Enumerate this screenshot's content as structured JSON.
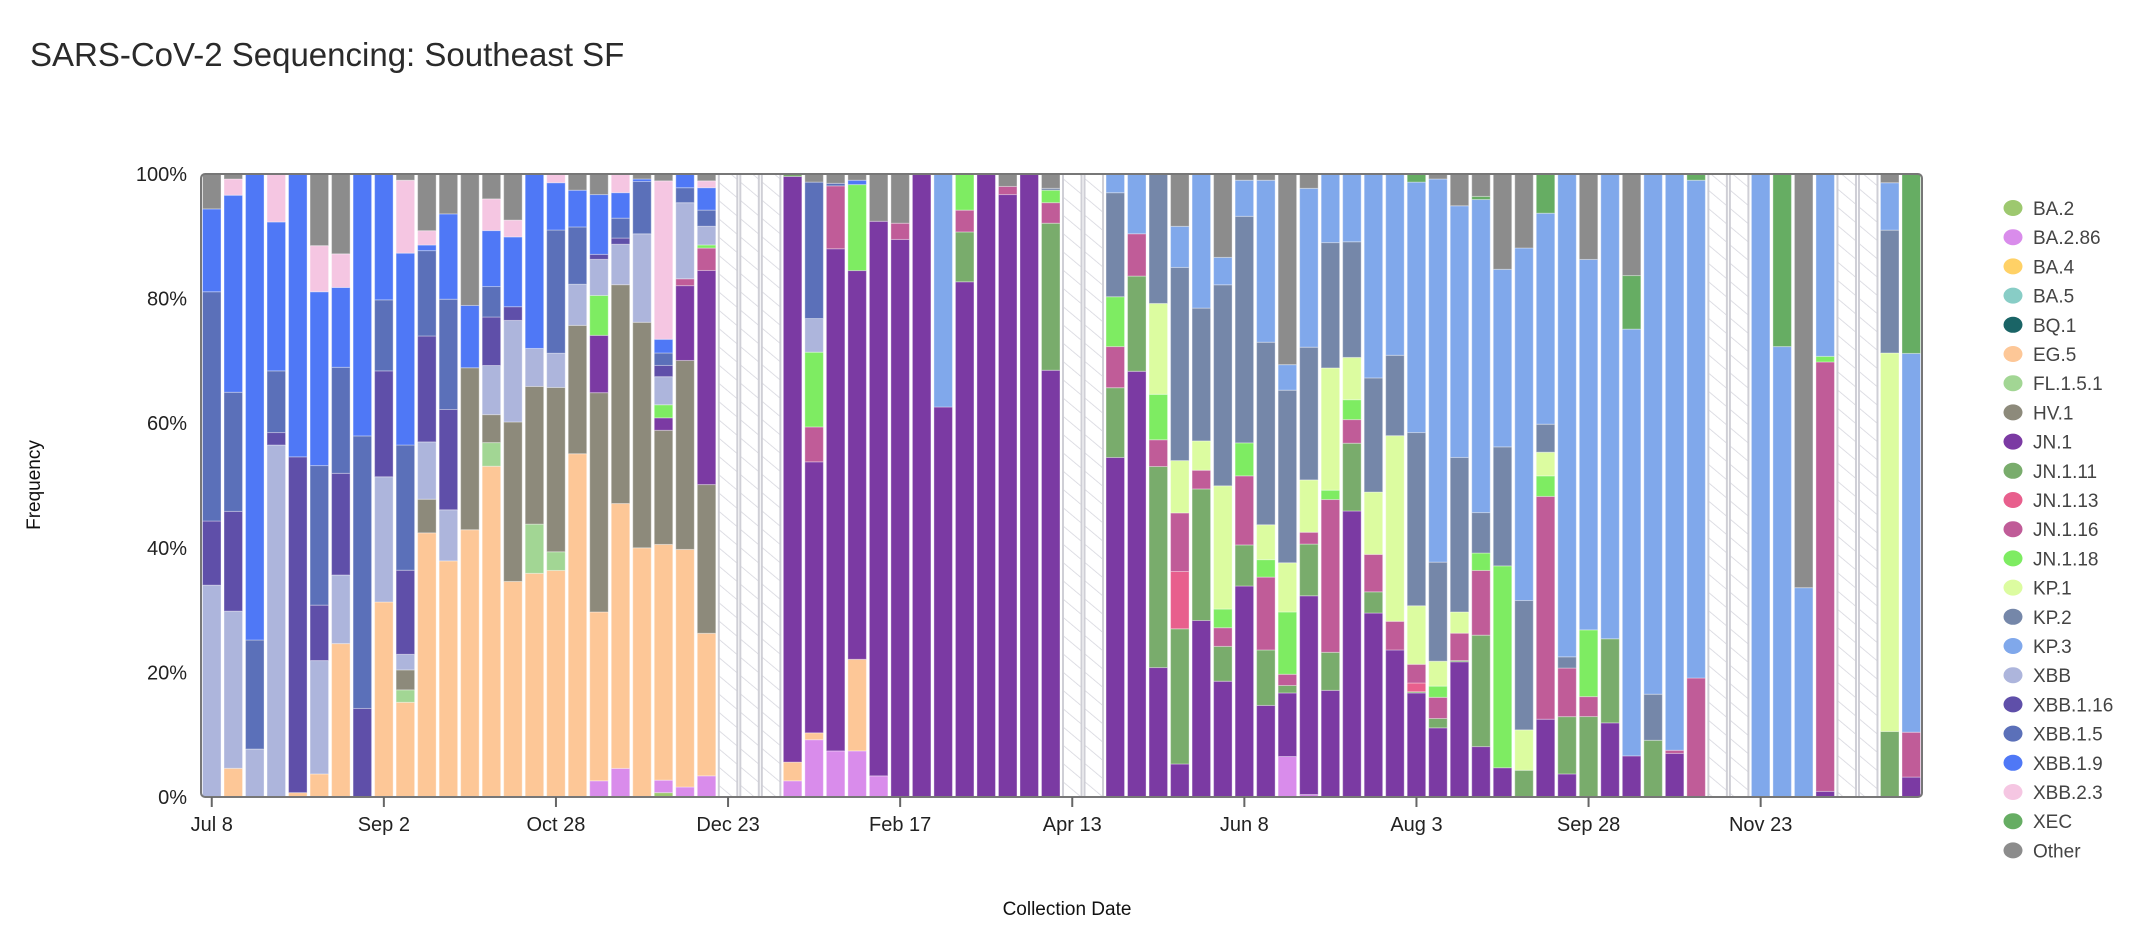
{
  "title": "SARS-CoV-2 Sequencing: Southeast SF",
  "chart_data": {
    "type": "bar",
    "stacked": true,
    "normalized": true,
    "title": "SARS-CoV-2 Sequencing: Southeast SF",
    "xlabel": "Collection Date",
    "ylabel": "Frequency",
    "ylim": [
      0,
      100
    ],
    "y_ticks": [
      "0%",
      "20%",
      "40%",
      "60%",
      "80%",
      "100%"
    ],
    "x_ticks": [
      {
        "label": "Jul 8",
        "date": "2023-07-08"
      },
      {
        "label": "Sep 2",
        "date": "2023-09-02"
      },
      {
        "label": "Oct 28",
        "date": "2023-10-28"
      },
      {
        "label": "Dec 23",
        "date": "2023-12-23"
      },
      {
        "label": "Feb 17",
        "date": "2024-02-17"
      },
      {
        "label": "Apr 13",
        "date": "2024-04-13"
      },
      {
        "label": "Jun 8",
        "date": "2024-06-08"
      },
      {
        "label": "Aug 3",
        "date": "2024-08-03"
      },
      {
        "label": "Sep 28",
        "date": "2024-09-28"
      },
      {
        "label": "Nov 23",
        "date": "2024-11-23"
      }
    ],
    "legend_position": "right",
    "missing_weeks_style": "hatched",
    "variants": [
      {
        "name": "BA.2",
        "color": "#9dc86f"
      },
      {
        "name": "BA.2.86",
        "color": "#d98ceb"
      },
      {
        "name": "BA.4",
        "color": "#ffd166"
      },
      {
        "name": "BA.5",
        "color": "#88cdc6"
      },
      {
        "name": "BQ.1",
        "color": "#1a6466"
      },
      {
        "name": "EG.5",
        "color": "#fdc797"
      },
      {
        "name": "FL.1.5.1",
        "color": "#a2d694"
      },
      {
        "name": "HV.1",
        "color": "#8d8a7b"
      },
      {
        "name": "JN.1",
        "color": "#7b3aa3"
      },
      {
        "name": "JN.1.11",
        "color": "#79ac6c"
      },
      {
        "name": "JN.1.13",
        "color": "#e85f8d"
      },
      {
        "name": "JN.1.16",
        "color": "#c05c98"
      },
      {
        "name": "JN.1.18",
        "color": "#7eec62"
      },
      {
        "name": "KP.1",
        "color": "#dcfca0"
      },
      {
        "name": "KP.2",
        "color": "#7587a9"
      },
      {
        "name": "KP.3",
        "color": "#80a8eb"
      },
      {
        "name": "XBB",
        "color": "#adb5dc"
      },
      {
        "name": "XBB.1.16",
        "color": "#5f4fa9"
      },
      {
        "name": "XBB.1.5",
        "color": "#5b70b9"
      },
      {
        "name": "XBB.1.9",
        "color": "#4f78f6"
      },
      {
        "name": "XBB.2.3",
        "color": "#f5c6e2"
      },
      {
        "name": "XEC",
        "color": "#66ad63"
      },
      {
        "name": "Other",
        "color": "#8c8c8c"
      }
    ],
    "weeks": [
      {
        "date": "2023-07-08",
        "values": {
          "XBB": 34,
          "XBB.1.16": 10.3,
          "XBB.1.5": 36.8,
          "XBB.1.9": 13.3,
          "Other": 5.6
        }
      },
      {
        "date": "2023-07-15",
        "values": {
          "EG.5": 4.6,
          "XBB": 25.2,
          "XBB.1.16": 16,
          "XBB.1.5": 19.1,
          "XBB.1.9": 31.6,
          "XBB.2.3": 2.6,
          "Other": 0.8
        }
      },
      {
        "date": "2023-07-22",
        "values": {
          "XBB": 7.7,
          "XBB.1.5": 17.5,
          "XBB.1.9": 74.8
        }
      },
      {
        "date": "2023-07-29",
        "values": {
          "XBB": 56.5,
          "XBB.1.16": 2,
          "XBB.1.5": 9.9,
          "XBB.1.9": 23.9,
          "XBB.2.3": 7.7
        }
      },
      {
        "date": "2023-08-05",
        "values": {
          "EG.5": 0.7,
          "XBB.1.16": 53.9,
          "XBB.1.9": 45.4
        }
      },
      {
        "date": "2023-08-12",
        "values": {
          "EG.5": 3.7,
          "XBB": 18.2,
          "XBB.1.16": 8.9,
          "XBB.1.5": 22.4,
          "XBB.1.9": 27.9,
          "XBB.2.3": 7.4,
          "Other": 11.5
        }
      },
      {
        "date": "2023-08-19",
        "values": {
          "EG.5": 24.6,
          "XBB": 11,
          "XBB.1.16": 16.3,
          "XBB.1.5": 17,
          "XBB.1.9": 12.8,
          "XBB.2.3": 5.4,
          "Other": 12.8
        }
      },
      {
        "date": "2023-08-26",
        "values": {
          "XBB.1.16": 14.2,
          "XBB.1.5": 43.7,
          "XBB.1.9": 42
        }
      },
      {
        "date": "2023-09-02",
        "values": {
          "EG.5": 31.3,
          "XBB": 20.1,
          "XBB.1.16": 17,
          "XBB.1.5": 11.4,
          "XBB.1.9": 20.2
        }
      },
      {
        "date": "2023-09-09",
        "values": {
          "EG.5": 15.2,
          "FL.1.5.1": 2,
          "HV.1": 3.2,
          "XBB": 2.5,
          "XBB.1.16": 13.5,
          "XBB.1.5": 20.1,
          "XBB.1.9": 30.8,
          "XBB.2.3": 11.7,
          "Other": 1
        }
      },
      {
        "date": "2023-09-16",
        "values": {
          "EG.5": 42.4,
          "HV.1": 5.4,
          "XBB": 9.2,
          "XBB.1.16": 17,
          "XBB.1.5": 13.7,
          "XBB.1.9": 0.9,
          "XBB.2.3": 2.3,
          "Other": 9.1
        }
      },
      {
        "date": "2023-09-23",
        "values": {
          "EG.5": 37.9,
          "XBB": 8.2,
          "XBB.1.16": 16.1,
          "XBB.1.5": 17.7,
          "XBB.1.9": 13.7,
          "Other": 6.4
        }
      },
      {
        "date": "2023-09-30",
        "values": {
          "EG.5": 42.9,
          "HV.1": 26,
          "XBB.1.9": 10,
          "Other": 21.1
        }
      },
      {
        "date": "2023-10-07",
        "values": {
          "EG.5": 53.2,
          "FL.1.5.1": 3.8,
          "HV.1": 4.5,
          "XBB": 7.9,
          "XBB.1.16": 7.8,
          "XBB.1.5": 4.9,
          "XBB.1.9": 9,
          "XBB.2.3": 5.1,
          "Other": 4
        }
      },
      {
        "date": "2023-10-14",
        "values": {
          "EG.5": 34.6,
          "HV.1": 25.6,
          "XBB": 16.3,
          "XBB.1.16": 2.2,
          "XBB.1.9": 11.2,
          "XBB.2.3": 2.7,
          "Other": 7.4
        }
      },
      {
        "date": "2023-10-21",
        "values": {
          "EG.5": 35.9,
          "FL.1.5.1": 7.9,
          "HV.1": 22.1,
          "XBB": 6.1,
          "XBB.1.9": 28
        }
      },
      {
        "date": "2023-10-28",
        "values": {
          "EG.5": 36.4,
          "FL.1.5.1": 3,
          "HV.1": 26.4,
          "XBB": 5.5,
          "XBB.1.5": 19.8,
          "XBB.1.9": 7.6,
          "XBB.2.3": 1.4
        }
      },
      {
        "date": "2023-11-04",
        "values": {
          "EG.5": 55.1,
          "HV.1": 20.6,
          "XBB": 6.6,
          "XBB.1.5": 9.2,
          "XBB.1.9": 5.9,
          "Other": 2.6
        }
      },
      {
        "date": "2023-11-11",
        "values": {
          "BA.2.86": 2.6,
          "EG.5": 27.1,
          "HV.1": 35.2,
          "JN.1": 9.2,
          "JN.1.18": 6.4,
          "XBB": 5.8,
          "XBB.1.16": 0.8,
          "XBB.1.9": 9.6,
          "Other": 3.3
        }
      },
      {
        "date": "2023-11-18",
        "values": {
          "BA.2.86": 4.6,
          "EG.5": 42.6,
          "HV.1": 35.2,
          "XBB": 6.5,
          "XBB.1.16": 1,
          "XBB.1.5": 3.2,
          "XBB.1.9": 4.1,
          "XBB.2.3": 3
        }
      },
      {
        "date": "2023-11-25",
        "values": {
          "EG.5": 40,
          "HV.1": 36.2,
          "XBB": 14.2,
          "XBB.1.5": 8.4,
          "XBB.1.9": 0.4,
          "Other": 0.8
        }
      },
      {
        "date": "2023-12-02",
        "values": {
          "BA.2": 0.7,
          "BA.2.86": 2,
          "EG.5": 37.8,
          "HV.1": 18.3,
          "JN.1": 2,
          "JN.1.18": 2.1,
          "XBB": 4.5,
          "XBB.1.16": 1.8,
          "XBB.1.5": 2,
          "XBB.1.9": 2.2,
          "XBB.2.3": 25.4,
          "Other": 1.1
        }
      },
      {
        "date": "2023-12-09",
        "values": {
          "BA.2.86": 1.6,
          "EG.5": 38.1,
          "HV.1": 30.3,
          "JN.1": 12,
          "JN.1.16": 1.1,
          "XBB": 12.2,
          "XBB.1.5": 2.4,
          "XBB.1.9": 2.2
        }
      },
      {
        "date": "2023-12-16",
        "values": {
          "BA.2.86": 3.4,
          "EG.5": 22.9,
          "HV.1": 23.9,
          "JN.1": 34.4,
          "JN.1.16": 3.6,
          "JN.1.18": 0.5,
          "XBB": 3,
          "XBB.1.5": 2.6,
          "XBB.1.9": 3.6,
          "XBB.2.3": 1.1,
          "Other": 1.1
        }
      },
      {
        "date": "2023-12-23",
        "values": null
      },
      {
        "date": "2023-12-30",
        "values": null
      },
      {
        "date": "2024-01-06",
        "values": null
      },
      {
        "date": "2024-01-13",
        "values": {
          "BA.2.86": 2.6,
          "EG.5": 3,
          "JN.1": 94,
          "JN.1.11": 0.4
        }
      },
      {
        "date": "2024-01-20",
        "values": {
          "BA.2.86": 9.2,
          "EG.5": 1.1,
          "JN.1": 43.5,
          "JN.1.16": 5.6,
          "JN.1.18": 12,
          "XBB": 5.4,
          "XBB.1.5": 21.9,
          "Other": 1.3
        }
      },
      {
        "date": "2024-01-27",
        "values": {
          "BA.2.86": 7.4,
          "JN.1": 80.6,
          "JN.1.16": 10.1,
          "XBB.1.5": 0.4,
          "Other": 1.5
        }
      },
      {
        "date": "2024-02-03",
        "values": {
          "BA.2.86": 7.4,
          "EG.5": 14.7,
          "JN.1": 62.4,
          "JN.1.18": 13.8,
          "XBB.1.9": 0.7,
          "Other": 1
        }
      },
      {
        "date": "2024-02-10",
        "values": {
          "BA.2.86": 3.4,
          "JN.1": 89.1,
          "Other": 7.6
        }
      },
      {
        "date": "2024-02-17",
        "values": {
          "JN.1": 89.5,
          "JN.1.16": 2.6,
          "Other": 7.9
        }
      },
      {
        "date": "2024-02-24",
        "values": {
          "JN.1": 100
        }
      },
      {
        "date": "2024-03-02",
        "values": {
          "JN.1": 62.6,
          "KP.3": 37.4
        }
      },
      {
        "date": "2024-03-09",
        "values": {
          "JN.1": 82.7,
          "JN.1.11": 8,
          "JN.1.16": 3.5,
          "JN.1.18": 5.8
        }
      },
      {
        "date": "2024-03-16",
        "values": {
          "JN.1": 100
        }
      },
      {
        "date": "2024-03-23",
        "values": {
          "JN.1": 96.7,
          "JN.1.16": 1.3,
          "Other": 2
        }
      },
      {
        "date": "2024-03-30",
        "values": {
          "JN.1": 100
        }
      },
      {
        "date": "2024-04-06",
        "values": {
          "JN.1": 68.5,
          "JN.1.11": 23.6,
          "JN.1.16": 3.3,
          "JN.1.18": 2,
          "KP.2": 0.3,
          "Other": 2.3
        }
      },
      {
        "date": "2024-04-13",
        "values": null
      },
      {
        "date": "2024-04-20",
        "values": null
      },
      {
        "date": "2024-04-27",
        "values": {
          "JN.1": 54.5,
          "JN.1.11": 11.2,
          "JN.1.16": 6.6,
          "JN.1.18": 8,
          "KP.2": 16.7,
          "KP.3": 3
        }
      },
      {
        "date": "2024-05-04",
        "values": {
          "JN.1": 68.4,
          "JN.1.11": 15.3,
          "JN.1.16": 6.8,
          "KP.3": 9.6
        }
      },
      {
        "date": "2024-05-11",
        "values": {
          "JN.1": 20.8,
          "JN.1.11": 32.3,
          "JN.1.16": 4.3,
          "JN.1.18": 7.3,
          "KP.1": 14.6,
          "KP.2": 20.8
        }
      },
      {
        "date": "2024-05-18",
        "values": {
          "JN.1": 5.3,
          "JN.1.11": 21.7,
          "JN.1.13": 9.2,
          "JN.1.16": 9.4,
          "KP.1": 8.4,
          "KP.2": 31,
          "KP.3": 6.6,
          "Other": 8.4
        }
      },
      {
        "date": "2024-05-25",
        "values": {
          "JN.1": 28.3,
          "JN.1.11": 21.1,
          "JN.1.16": 3,
          "KP.1": 4.7,
          "KP.2": 21.3,
          "KP.3": 21.5
        }
      },
      {
        "date": "2024-06-01",
        "values": {
          "JN.1": 18.6,
          "JN.1.11": 5.6,
          "JN.1.16": 3,
          "JN.1.18": 3,
          "KP.1": 19.8,
          "KP.2": 32.3,
          "KP.3": 4.4,
          "Other": 13.4
        }
      },
      {
        "date": "2024-06-08",
        "values": {
          "JN.1": 33.9,
          "JN.1.11": 6.6,
          "JN.1.16": 11.1,
          "JN.1.18": 5.3,
          "KP.2": 36.4,
          "KP.3": 5.8,
          "Other": 1
        }
      },
      {
        "date": "2024-06-15",
        "values": {
          "JN.1": 14.7,
          "JN.1.11": 8.9,
          "JN.1.16": 11.7,
          "JN.1.18": 2.8,
          "KP.1": 5.6,
          "KP.2": 29.3,
          "KP.3": 26,
          "Other": 1
        }
      },
      {
        "date": "2024-06-22",
        "values": {
          "BA.2.86": 6.5,
          "JN.1": 10.2,
          "JN.1.11": 1.2,
          "JN.1.16": 1.8,
          "JN.1.18": 10,
          "KP.1": 7.9,
          "KP.2": 27.7,
          "KP.3": 4.1,
          "Other": 30.6
        }
      },
      {
        "date": "2024-06-29",
        "values": {
          "BA.2.86": 0.4,
          "JN.1": 31.9,
          "JN.1.11": 8.3,
          "JN.1.16": 1.9,
          "KP.1": 8.4,
          "KP.2": 21.3,
          "KP.3": 25.5,
          "Other": 2.3
        }
      },
      {
        "date": "2024-07-06",
        "values": {
          "JN.1": 17.1,
          "JN.1.11": 6.1,
          "JN.1.16": 24.5,
          "JN.1.18": 1.5,
          "KP.1": 19.6,
          "KP.2": 20.1,
          "KP.3": 11
        }
      },
      {
        "date": "2024-07-13",
        "values": {
          "JN.1": 46,
          "JN.1.11": 10.9,
          "JN.1.16": 3.8,
          "JN.1.18": 3.2,
          "KP.1": 6.8,
          "KP.2": 18.6,
          "KP.3": 10.9
        }
      },
      {
        "date": "2024-07-20",
        "values": {
          "JN.1": 29.5,
          "JN.1.11": 3.4,
          "JN.1.16": 6,
          "KP.1": 10,
          "KP.2": 18.3,
          "KP.3": 32.7
        }
      },
      {
        "date": "2024-07-27",
        "values": {
          "JN.1": 23.6,
          "JN.1.16": 4.6,
          "KP.1": 29.8,
          "KP.2": 12.9,
          "KP.3": 29.1
        }
      },
      {
        "date": "2024-08-03",
        "values": {
          "JN.1": 16.7,
          "JN.1.11": 0.2,
          "JN.1.13": 1.4,
          "JN.1.16": 3,
          "KP.1": 9.4,
          "KP.2": 27.8,
          "KP.3": 40.2,
          "XEC": 1.3
        }
      },
      {
        "date": "2024-08-10",
        "values": {
          "JN.1": 11.1,
          "JN.1.11": 1.5,
          "JN.1.16": 3.4,
          "JN.1.18": 1.8,
          "KP.1": 4,
          "KP.2": 15.9,
          "KP.3": 61.5,
          "Other": 0.8
        }
      },
      {
        "date": "2024-08-17",
        "values": {
          "JN.1": 21.7,
          "JN.1.11": 0.2,
          "JN.1.16": 4.4,
          "KP.1": 3.4,
          "KP.2": 24.8,
          "KP.3": 40.4,
          "Other": 5.1
        }
      },
      {
        "date": "2024-08-24",
        "values": {
          "JN.1": 8.1,
          "JN.1.11": 17.9,
          "JN.1.16": 10.4,
          "JN.1.18": 2.8,
          "KP.2": 6.5,
          "KP.3": 50.3,
          "XEC": 0.5,
          "Other": 3.6
        }
      },
      {
        "date": "2024-08-31",
        "values": {
          "JN.1": 4.7,
          "JN.1.18": 32.4,
          "KP.2": 19.1,
          "KP.3": 28.5,
          "Other": 15.3
        }
      },
      {
        "date": "2024-09-07",
        "values": {
          "JN.1.11": 4.3,
          "KP.1": 6.5,
          "KP.2": 20.8,
          "KP.3": 56.7,
          "Other": 11.9
        }
      },
      {
        "date": "2024-09-14",
        "values": {
          "JN.1": 12.5,
          "JN.1.16": 35.8,
          "JN.1.18": 3.3,
          "KP.1": 3.8,
          "KP.2": 4.5,
          "KP.3": 33.9,
          "XEC": 6.3
        }
      },
      {
        "date": "2024-09-21",
        "values": {
          "JN.1": 3.7,
          "JN.1.11": 9.2,
          "JN.1.16": 7.8,
          "KP.2": 1.8,
          "KP.3": 77.5
        }
      },
      {
        "date": "2024-09-28",
        "values": {
          "JN.1.11": 12.9,
          "JN.1.16": 3.2,
          "JN.1.18": 10.7,
          "KP.3": 59.4,
          "Other": 13.7
        }
      },
      {
        "date": "2024-10-05",
        "values": {
          "JN.1": 11.9,
          "JN.1.11": 13.5,
          "KP.3": 74.6
        }
      },
      {
        "date": "2024-10-12",
        "values": {
          "JN.1": 6.6,
          "KP.3": 68.5,
          "XEC": 8.6,
          "Other": 16.3
        }
      },
      {
        "date": "2024-10-19",
        "values": {
          "JN.1.11": 9.1,
          "KP.2": 7.4,
          "KP.3": 83.5
        }
      },
      {
        "date": "2024-10-26",
        "values": {
          "JN.1": 7,
          "JN.1.16": 0.5,
          "KP.3": 92.5
        }
      },
      {
        "date": "2024-11-02",
        "values": {
          "JN.1.16": 19.1,
          "KP.3": 79.9,
          "XEC": 1
        }
      },
      {
        "date": "2024-11-09",
        "values": null
      },
      {
        "date": "2024-11-16",
        "values": null
      },
      {
        "date": "2024-11-23",
        "values": {
          "KP.3": 100
        }
      },
      {
        "date": "2024-11-30",
        "values": {
          "KP.3": 72.3,
          "XEC": 27.7
        }
      },
      {
        "date": "2024-12-07",
        "values": {
          "KP.3": 33.6,
          "Other": 66.4
        }
      },
      {
        "date": "2024-12-14",
        "values": {
          "JN.1": 0.9,
          "JN.1.16": 69,
          "JN.1.18": 0.9,
          "KP.3": 29.3
        }
      },
      {
        "date": "2024-12-21",
        "values": null
      },
      {
        "date": "2024-12-28",
        "values": null
      },
      {
        "date": "2025-01-04",
        "values": {
          "JN.1.11": 10.5,
          "KP.1": 60.7,
          "KP.2": 19.7,
          "KP.3": 7.6,
          "Other": 1.4
        }
      },
      {
        "date": "2025-01-11",
        "values": {
          "JN.1": 3.2,
          "JN.1.16": 7.2,
          "KP.3": 60.8,
          "XEC": 28.8
        }
      }
    ]
  }
}
